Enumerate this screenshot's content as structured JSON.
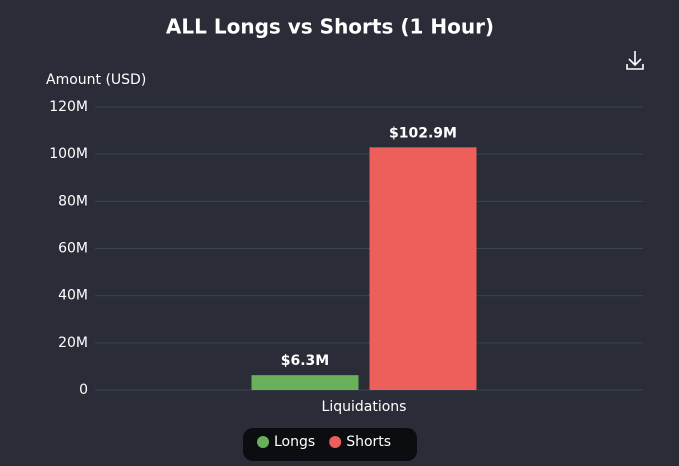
{
  "chart_data": {
    "type": "bar",
    "title": "ALL Longs vs Shorts (1 Hour)",
    "y_axis_label": "Amount (USD)",
    "categories": [
      "Liquidations"
    ],
    "series": [
      {
        "name": "Longs",
        "color": "#68b05a",
        "values": [
          6300000
        ],
        "value_labels": [
          "$6.3M"
        ]
      },
      {
        "name": "Shorts",
        "color": "#ec5f5a",
        "values": [
          102900000
        ],
        "value_labels": [
          "$102.9M"
        ]
      }
    ],
    "ylim": [
      0,
      120000000
    ],
    "yticks": [
      0,
      {
        "value": 20000000,
        "label": "20M"
      },
      {
        "value": 40000000,
        "label": "40M"
      },
      {
        "value": 60000000,
        "label": "60M"
      },
      {
        "value": 80000000,
        "label": "80M"
      },
      {
        "value": 100000000,
        "label": "100M"
      },
      {
        "value": 120000000,
        "label": "120M"
      }
    ],
    "grid": true
  }
}
